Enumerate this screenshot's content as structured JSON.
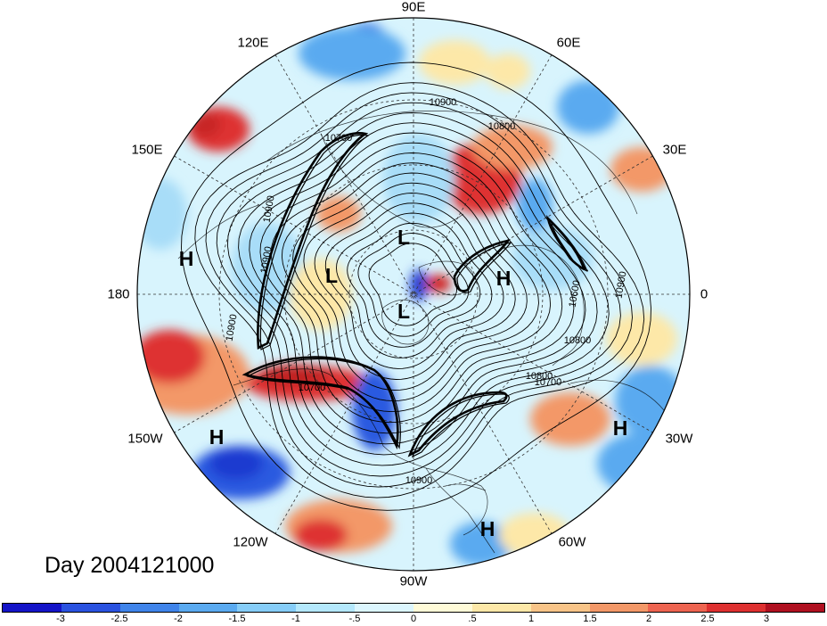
{
  "title": "Day 2004121000",
  "longitude_labels": {
    "deg90e": "90E",
    "deg120e": "120E",
    "deg60e": "60E",
    "deg150e": "150E",
    "deg30e": "30E",
    "deg180": "180",
    "deg0": "0",
    "deg150w": "150W",
    "deg30w": "30W",
    "deg120w": "120W",
    "deg60w": "60W",
    "deg90w": "90W"
  },
  "pressure_centers": [
    {
      "kind": "H",
      "label": "H"
    },
    {
      "kind": "H",
      "label": "H"
    },
    {
      "kind": "H",
      "label": "H"
    },
    {
      "kind": "H",
      "label": "H"
    },
    {
      "kind": "H",
      "label": "H"
    },
    {
      "kind": "L",
      "label": "L"
    },
    {
      "kind": "L",
      "label": "L"
    },
    {
      "kind": "L",
      "label": "L"
    }
  ],
  "contour_labels": [
    "10900",
    "10800",
    "10700",
    "10900",
    "10900",
    "10800",
    "10600",
    "10900",
    "10800",
    "10700",
    "10700",
    "10900",
    "10900"
  ],
  "colorbar": {
    "ticks": [
      "-3",
      "-2.5",
      "-2",
      "-1.5",
      "-1",
      "-.5",
      "0",
      ".5",
      "1",
      "1.5",
      "2",
      "2.5",
      "3"
    ],
    "colors": [
      "#1414c8",
      "#2a52e0",
      "#3f84ea",
      "#5aaaf0",
      "#86cdf8",
      "#b4e8fc",
      "#dcf6fe",
      "#fffbd8",
      "#fde8a8",
      "#f8c488",
      "#f39868",
      "#ee6450",
      "#de3030",
      "#b01020"
    ]
  },
  "map": {
    "projection": "north polar stereographic",
    "shading": "anomaly color fill",
    "contours": "geopotential height",
    "anomaly_colors": {
      "strong_negative": "#2c5ae0",
      "negative": "#5aaaf0",
      "weak_negative": "#a8ddf8",
      "weak_positive": "#fde8a8",
      "positive": "#f39868",
      "strong_positive": "#de3030"
    }
  }
}
